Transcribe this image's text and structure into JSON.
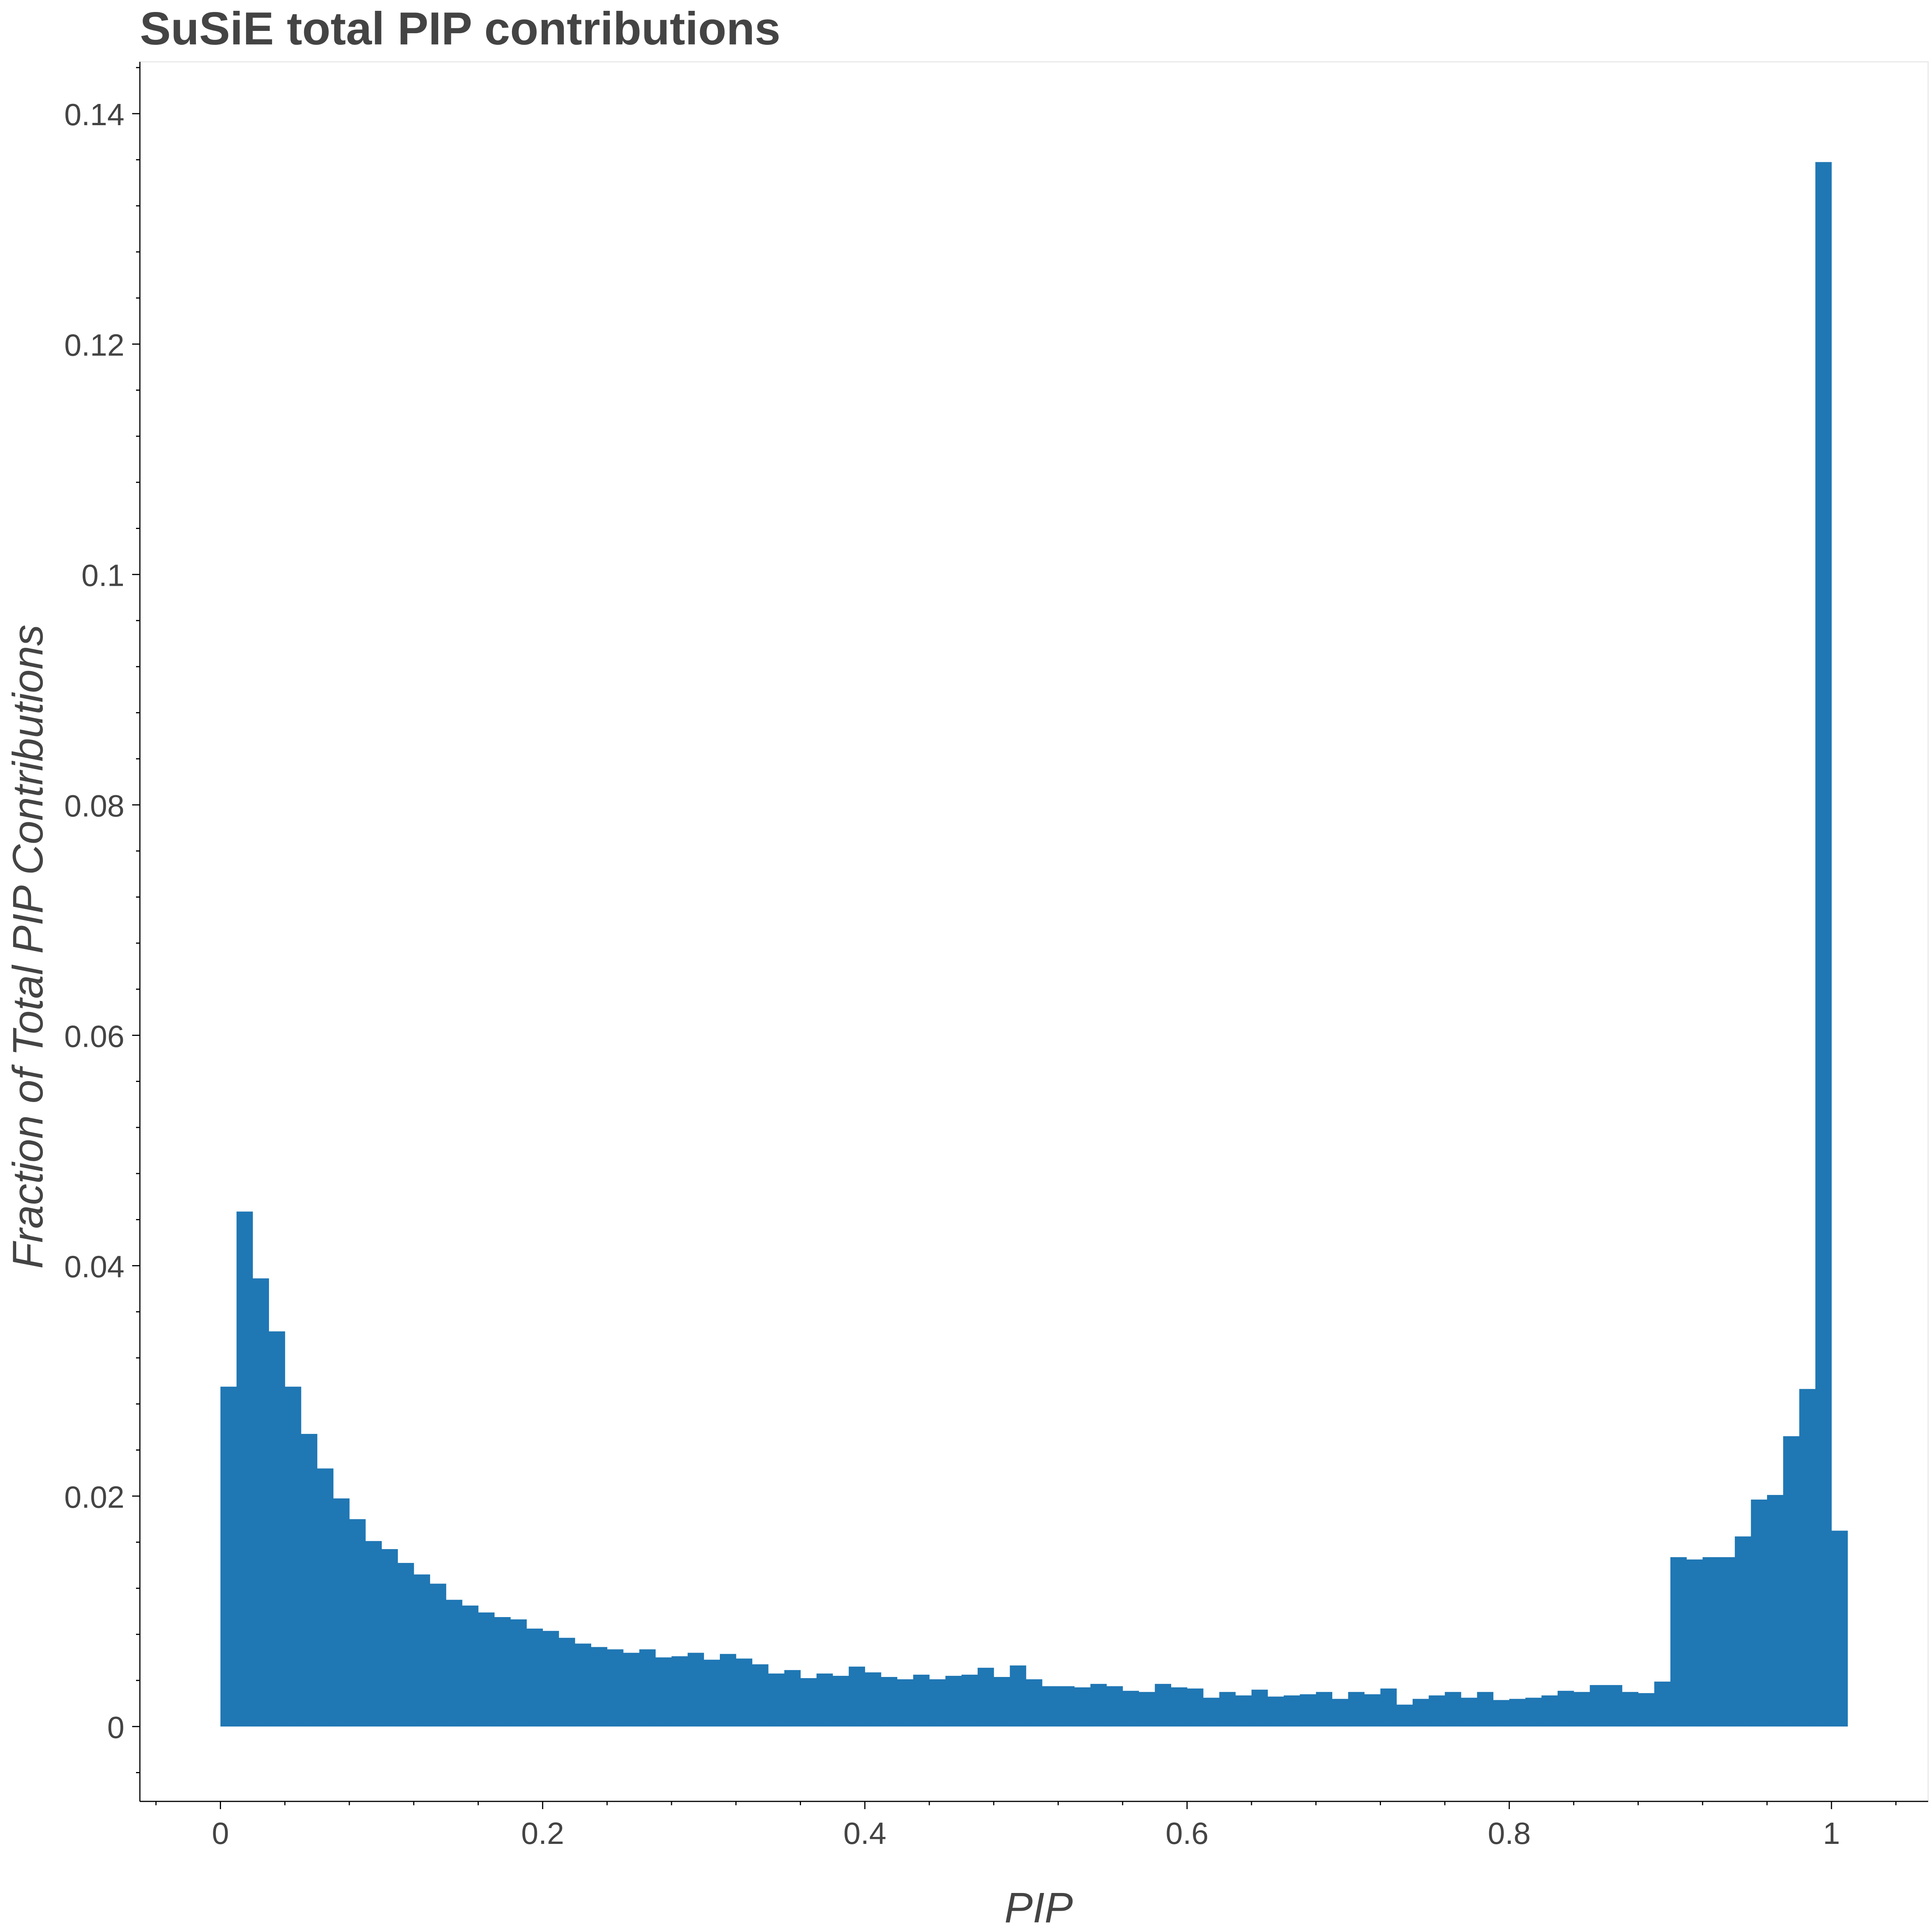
{
  "chart_data": {
    "type": "bar",
    "title": "SuSiE total PIP contributions",
    "xlabel": "PIP",
    "ylabel": "Fraction of Total PIP Contributions",
    "xlim": [
      -0.05,
      1.06
    ],
    "ylim": [
      -0.0065,
      0.1445
    ],
    "x_ticks": [
      0,
      0.2,
      0.4,
      0.6,
      0.8,
      1
    ],
    "x_tick_labels": [
      "0",
      "0.2",
      "0.4",
      "0.6",
      "0.8",
      "1"
    ],
    "y_ticks": [
      0,
      0.02,
      0.04,
      0.06,
      0.08,
      0.1,
      0.12,
      0.14
    ],
    "y_tick_labels": [
      "0",
      "0.02",
      "0.04",
      "0.06",
      "0.08",
      "0.1",
      "0.12",
      "0.14"
    ],
    "bin_start": 0,
    "bin_width": 0.01,
    "values": [
      0.0295,
      0.0447,
      0.0389,
      0.0343,
      0.0295,
      0.0254,
      0.0224,
      0.0198,
      0.018,
      0.0161,
      0.0154,
      0.0142,
      0.0132,
      0.0124,
      0.011,
      0.0105,
      0.0099,
      0.0095,
      0.0093,
      0.0085,
      0.0083,
      0.0077,
      0.0072,
      0.0069,
      0.0067,
      0.0064,
      0.0067,
      0.006,
      0.0061,
      0.0064,
      0.0058,
      0.0063,
      0.0059,
      0.0054,
      0.0046,
      0.0049,
      0.0042,
      0.0046,
      0.0044,
      0.0052,
      0.0047,
      0.0043,
      0.0041,
      0.0045,
      0.0041,
      0.0044,
      0.0045,
      0.0051,
      0.0043,
      0.0053,
      0.0041,
      0.0035,
      0.0035,
      0.0034,
      0.0037,
      0.0035,
      0.0031,
      0.003,
      0.0037,
      0.0034,
      0.0033,
      0.0025,
      0.003,
      0.0027,
      0.0032,
      0.0026,
      0.0027,
      0.0028,
      0.003,
      0.0024,
      0.003,
      0.0028,
      0.0033,
      0.0019,
      0.0024,
      0.0027,
      0.003,
      0.0025,
      0.003,
      0.0023,
      0.0024,
      0.0025,
      0.0027,
      0.0031,
      0.003,
      0.0036,
      0.0036,
      0.003,
      0.0029,
      0.0039,
      0.0147,
      0.0145,
      0.0147,
      0.0147,
      0.0165,
      0.0197,
      0.0201,
      0.0252,
      0.0293,
      0.1358,
      0.017
    ],
    "bar_color": "#1f77b4",
    "grid": false,
    "legend": false
  }
}
